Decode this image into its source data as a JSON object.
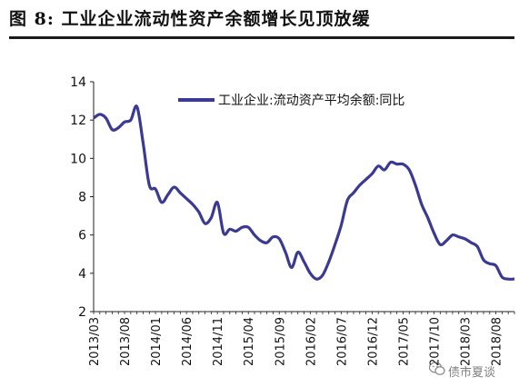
{
  "figure": {
    "title": "图 8:  工业企业流动性资产余额增长见顶放缓",
    "watermark": "债市夏谈",
    "watermark_icon": "wechat-icon"
  },
  "chart_data": {
    "type": "line",
    "title": "",
    "xlabel": "",
    "ylabel": "",
    "ylim": [
      2,
      14
    ],
    "yticks": [
      2,
      4,
      6,
      8,
      10,
      12,
      14
    ],
    "xlim": [
      "2013/03",
      "2018/11"
    ],
    "x_tick_labels": [
      "2013/03",
      "2013/08",
      "2014/01",
      "2014/06",
      "2014/11",
      "2015/04",
      "2015/09",
      "2016/02",
      "2016/07",
      "2016/12",
      "2017/05",
      "2017/10",
      "2018/03",
      "2018/08"
    ],
    "grid": false,
    "legend_position": "top",
    "line_color": "#3b3a92",
    "series": [
      {
        "name": "工业企业:流动资产平均余额:同比",
        "x": [
          "2013/03",
          "2013/04",
          "2013/05",
          "2013/06",
          "2013/07",
          "2013/08",
          "2013/09",
          "2013/10",
          "2013/11",
          "2013/12",
          "2014/01",
          "2014/02",
          "2014/03",
          "2014/04",
          "2014/05",
          "2014/06",
          "2014/07",
          "2014/08",
          "2014/09",
          "2014/10",
          "2014/11",
          "2014/12",
          "2015/01",
          "2015/02",
          "2015/03",
          "2015/04",
          "2015/05",
          "2015/06",
          "2015/07",
          "2015/08",
          "2015/09",
          "2015/10",
          "2015/11",
          "2015/12",
          "2016/01",
          "2016/02",
          "2016/03",
          "2016/04",
          "2016/05",
          "2016/06",
          "2016/07",
          "2016/08",
          "2016/09",
          "2016/10",
          "2016/11",
          "2016/12",
          "2017/01",
          "2017/02",
          "2017/03",
          "2017/04",
          "2017/05",
          "2017/06",
          "2017/07",
          "2017/08",
          "2017/09",
          "2017/10",
          "2017/11",
          "2017/12",
          "2018/01",
          "2018/02",
          "2018/03",
          "2018/04",
          "2018/05",
          "2018/06",
          "2018/07",
          "2018/08",
          "2018/09",
          "2018/10",
          "2018/11"
        ],
        "values": [
          12.1,
          12.3,
          12.1,
          11.5,
          11.6,
          11.9,
          12.0,
          12.7,
          10.8,
          8.6,
          8.4,
          7.7,
          8.1,
          8.5,
          8.2,
          7.9,
          7.6,
          7.2,
          6.6,
          6.9,
          7.7,
          6.1,
          6.3,
          6.2,
          6.4,
          6.4,
          6.0,
          5.7,
          5.6,
          5.9,
          5.8,
          5.1,
          4.3,
          5.1,
          4.6,
          4.0,
          3.7,
          3.9,
          4.6,
          5.5,
          6.5,
          7.8,
          8.2,
          8.6,
          8.9,
          9.2,
          9.6,
          9.4,
          9.8,
          9.7,
          9.7,
          9.4,
          8.6,
          7.6,
          6.9,
          6.1,
          5.5,
          5.7,
          6.0,
          5.9,
          5.8,
          5.6,
          5.4,
          4.7,
          4.5,
          4.4,
          3.8,
          3.7,
          3.7
        ]
      }
    ]
  }
}
